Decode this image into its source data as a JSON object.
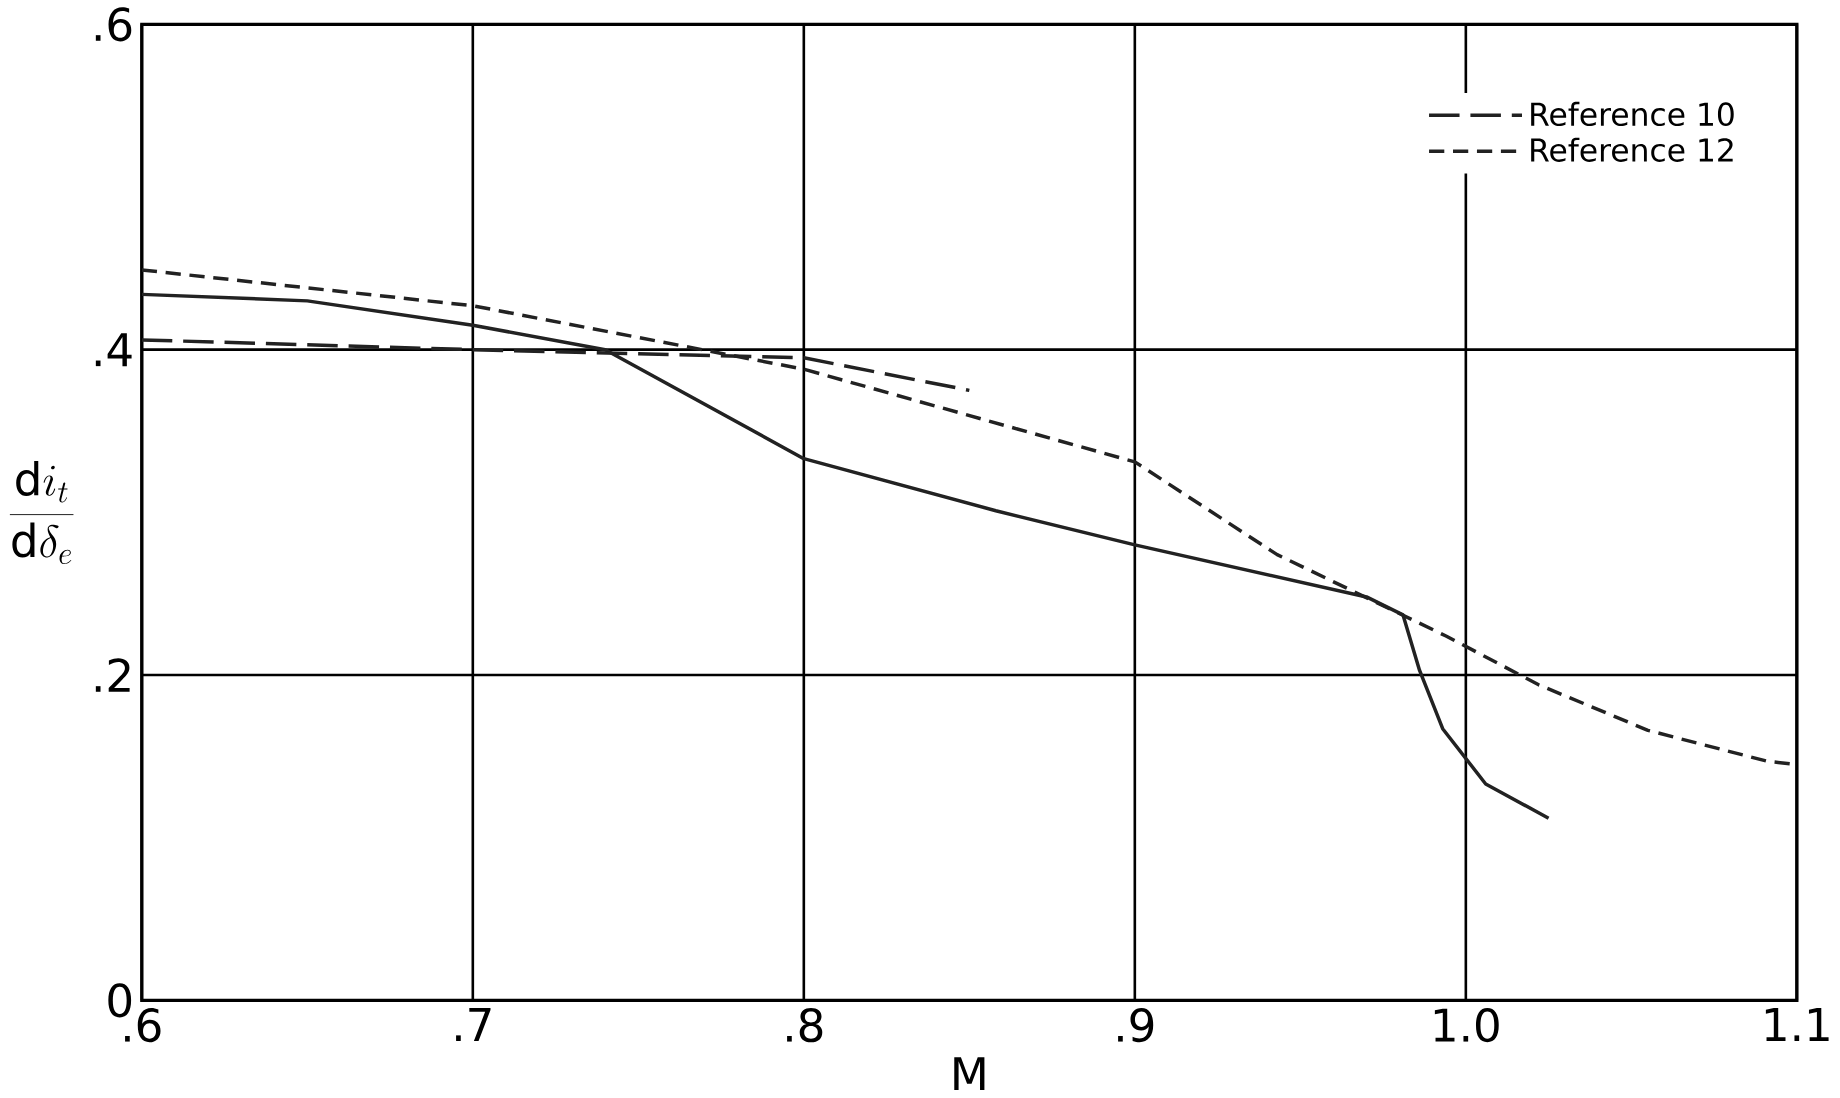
{
  "chart_data": {
    "type": "line",
    "xlabel": "M",
    "ylabel": "\\frac{\\mathrm{d}i_{t}}{\\mathrm{d}\\delta_{e}}",
    "xlim": [
      0.6,
      1.1
    ],
    "ylim": [
      0,
      0.6
    ],
    "xticks": [
      {
        "value": 0.6,
        "label": ".6"
      },
      {
        "value": 0.7,
        "label": ".7"
      },
      {
        "value": 0.8,
        "label": ".8"
      },
      {
        "value": 0.9,
        "label": ".9"
      },
      {
        "value": 1.0,
        "label": "1.0"
      },
      {
        "value": 1.1,
        "label": "1.1"
      }
    ],
    "yticks": [
      0,
      {
        "value": 0.2,
        "label": ".2"
      },
      {
        "value": 0.4,
        "label": ".4"
      },
      {
        "value": 0.6,
        "label": ".6"
      }
    ],
    "grid": true,
    "legend": "top right",
    "series": [
      {
        "color": "#222222",
        "line_style": "solid",
        "x": [
          0.6,
          0.65,
          0.7,
          0.74,
          0.8,
          0.858,
          0.9,
          0.97,
          0.981,
          0.986,
          0.993,
          1.006,
          1.025
        ],
        "values": [
          0.434,
          0.43,
          0.415,
          0.4,
          0.333,
          0.301,
          0.28,
          0.248,
          0.237,
          0.203,
          0.167,
          0.133,
          0.112
        ]
      },
      {
        "name": "Reference 10",
        "color": "#222222",
        "line_style": "dashed",
        "x": [
          0.6,
          0.7,
          0.8,
          0.85
        ],
        "values": [
          0.406,
          0.4,
          0.395,
          0.375
        ]
      },
      {
        "name": "Reference 12",
        "color": "#222222",
        "line_style": "dotted",
        "x": [
          0.6,
          0.7,
          0.8,
          0.9,
          0.943,
          0.994,
          1.022,
          1.055,
          1.091,
          1.1
        ],
        "values": [
          0.449,
          0.427,
          0.388,
          0.331,
          0.274,
          0.224,
          0.194,
          0.166,
          0.147,
          0.145
        ]
      }
    ]
  }
}
